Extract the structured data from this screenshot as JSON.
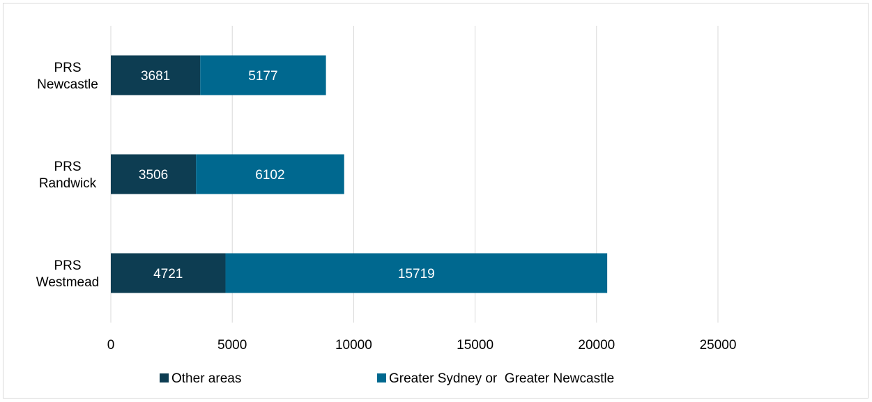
{
  "chart_data": {
    "type": "bar",
    "orientation": "horizontal",
    "stacked": true,
    "categories": [
      "PRS Westmead",
      "PRS Randwick",
      "PRS Newcastle"
    ],
    "category_lines": [
      [
        "PRS",
        "Westmead"
      ],
      [
        "PRS",
        "Randwick"
      ],
      [
        "PRS",
        "Newcastle"
      ]
    ],
    "series": [
      {
        "name": "Other areas",
        "color": "#0d3d52",
        "values": [
          4721,
          3506,
          3681
        ]
      },
      {
        "name": "Greater Sydney or  Greater Newcastle",
        "color": "#00688f",
        "values": [
          15719,
          6102,
          5177
        ]
      }
    ],
    "xlim": [
      0,
      25000
    ],
    "xticks": [
      "0",
      "5000",
      "10000",
      "15000",
      "20000",
      "25000"
    ],
    "grid": true,
    "legend_position": "bottom",
    "title": "",
    "xlabel": "",
    "ylabel": ""
  }
}
